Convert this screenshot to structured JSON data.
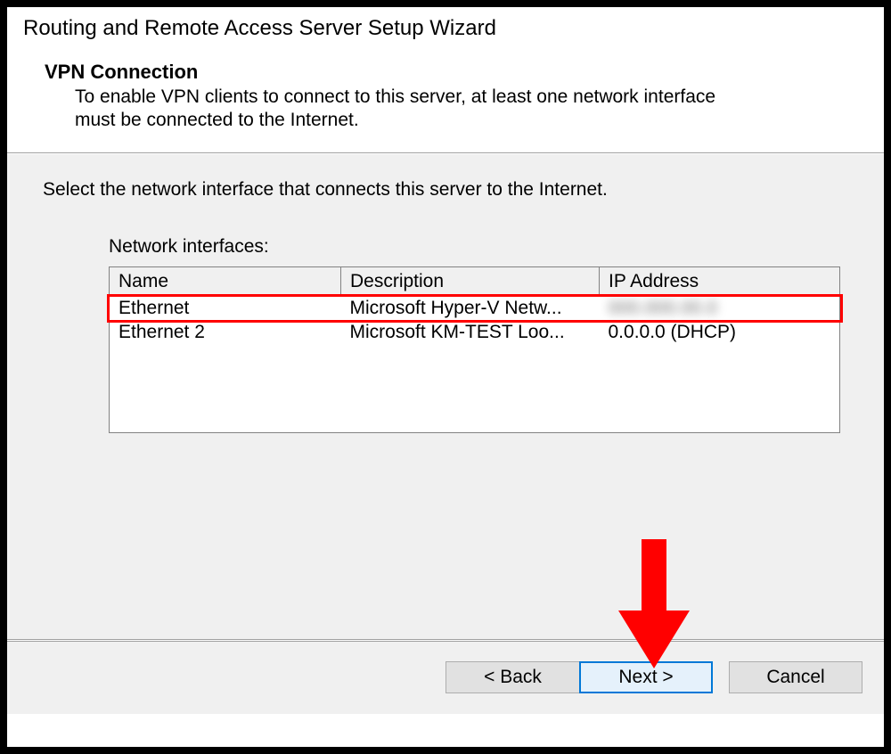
{
  "wizard": {
    "title": "Routing and Remote Access Server Setup Wizard",
    "section_title": "VPN Connection",
    "section_desc": "To enable VPN clients to connect to this server, at least one network interface must be connected to the Internet."
  },
  "body": {
    "instruction": "Select the network interface that connects this server to the Internet.",
    "table_label": "Network interfaces:"
  },
  "table": {
    "columns": {
      "name": "Name",
      "description": "Description",
      "ip": "IP Address"
    },
    "col_widths": [
      "260px",
      "290px",
      "270px"
    ],
    "rows": [
      {
        "name": "Ethernet",
        "description": "Microsoft Hyper-V Netw...",
        "ip": "",
        "ip_blurred": true,
        "highlighted": true
      },
      {
        "name": "Ethernet 2",
        "description": "Microsoft KM-TEST Loo...",
        "ip": "0.0.0.0 (DHCP)",
        "ip_blurred": false,
        "highlighted": false
      }
    ]
  },
  "buttons": {
    "back": "< Back",
    "next": "Next >",
    "cancel": "Cancel"
  },
  "annotation": {
    "highlight_color": "#ff0000",
    "arrow_color": "#ff0000"
  }
}
